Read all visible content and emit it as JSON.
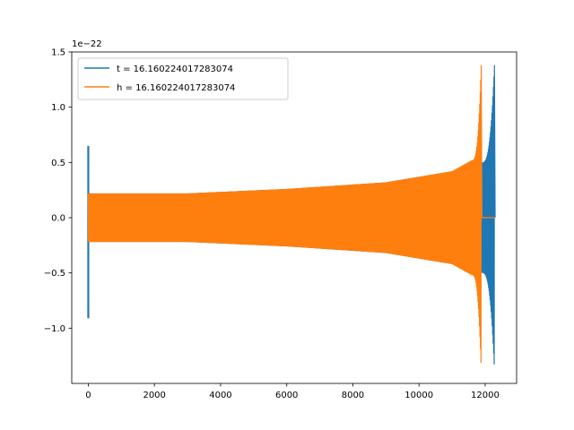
{
  "chart_data": {
    "type": "line",
    "title": "",
    "xlabel": "",
    "ylabel": "",
    "y_offset_label": "1e−22",
    "xlim": [
      -500,
      12950
    ],
    "ylim": [
      -1.5,
      1.5
    ],
    "x_ticks": [
      0,
      2000,
      4000,
      6000,
      8000,
      10000,
      12000
    ],
    "x_tick_labels": [
      "0",
      "2000",
      "4000",
      "6000",
      "8000",
      "10000",
      "12000"
    ],
    "y_ticks": [
      -1.0,
      -0.5,
      0.0,
      0.5,
      1.0,
      1.5
    ],
    "y_tick_labels": [
      "−1.0",
      "−0.5",
      "0.0",
      "0.5",
      "1.0",
      "1.5"
    ],
    "grid": false,
    "legend_position": "top-left",
    "series": [
      {
        "name": "t = 16.160224017283074",
        "color": "#1f77b4",
        "x_end": 12300,
        "spike_x": 0,
        "spike_range": [
          -0.91,
          0.65
        ],
        "envelope": [
          {
            "x": 0,
            "amp": 0.22
          },
          {
            "x": 3000,
            "amp": 0.22
          },
          {
            "x": 6000,
            "amp": 0.26
          },
          {
            "x": 9000,
            "amp": 0.32
          },
          {
            "x": 11000,
            "amp": 0.42
          },
          {
            "x": 11900,
            "amp": 0.5
          },
          {
            "x": 12280,
            "amp": 1.38
          }
        ]
      },
      {
        "name": "h = 16.160224017283074",
        "color": "#ff7f0e",
        "x_end": 12300,
        "merger_x": 11900,
        "envelope": [
          {
            "x": 0,
            "amp": 0.22
          },
          {
            "x": 3000,
            "amp": 0.22
          },
          {
            "x": 6000,
            "amp": 0.26
          },
          {
            "x": 9000,
            "amp": 0.32
          },
          {
            "x": 11000,
            "amp": 0.42
          },
          {
            "x": 11600,
            "amp": 0.52
          },
          {
            "x": 11880,
            "amp": 1.38
          }
        ]
      }
    ]
  }
}
